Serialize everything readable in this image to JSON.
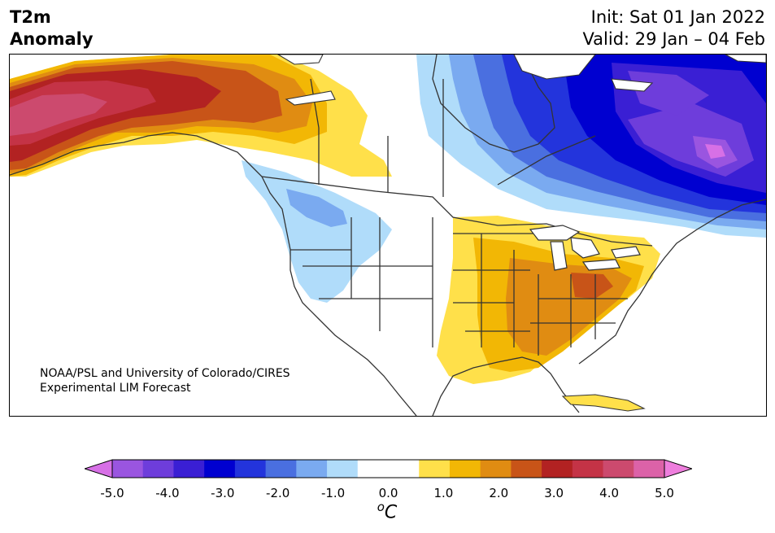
{
  "header": {
    "title_line1": "T2m",
    "title_line2": "Anomaly",
    "init_line": "Init: Sat 01 Jan 2022",
    "valid_line": "Valid: 29 Jan – 04 Feb"
  },
  "credit": {
    "line1": "NOAA/PSL and University of Colorado/CIRES",
    "line2": "Experimental LIM Forecast"
  },
  "colorbar": {
    "unit_label": "C",
    "unit_superscript": "o",
    "ticks": [
      "-5.0",
      "-4.0",
      "-3.0",
      "-2.0",
      "-1.0",
      "0.0",
      "1.0",
      "2.0",
      "3.0",
      "4.0",
      "5.0"
    ],
    "colors": [
      "#d770e6",
      "#9a55e0",
      "#6e3ddb",
      "#3a1fd4",
      "#0000d0",
      "#2334dc",
      "#4a6fe0",
      "#7aaaf0",
      "#b0dcfa",
      "#ffffff",
      "#ffffff",
      "#ffe04a",
      "#f2b705",
      "#e08c12",
      "#c85418",
      "#b22222",
      "#c43346",
      "#cc4a6e",
      "#dc62a8",
      "#ee7edd"
    ]
  }
}
